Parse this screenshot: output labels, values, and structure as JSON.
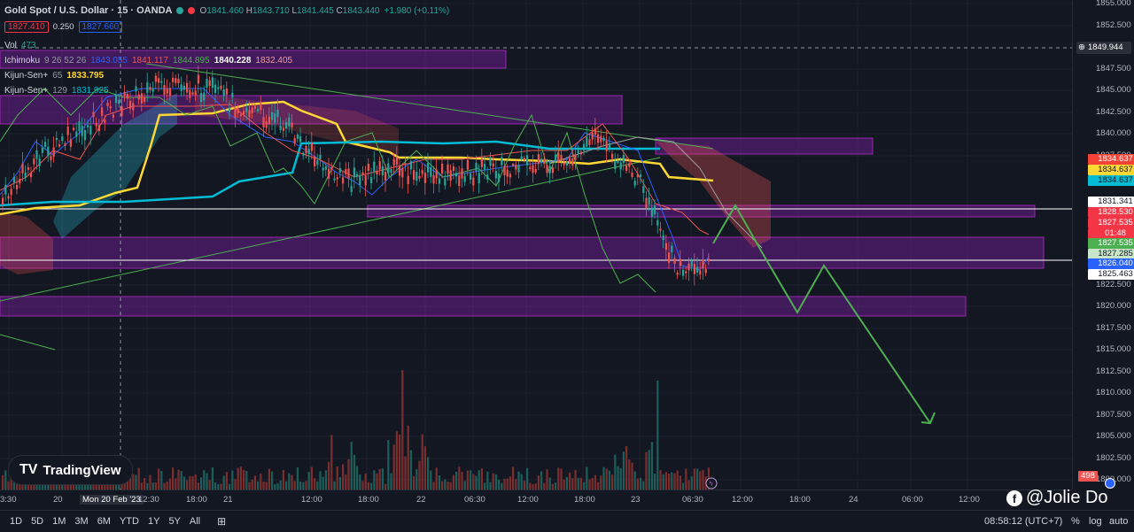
{
  "header": {
    "symbol": "Gold Spot / U.S. Dollar · 15 · OANDA",
    "ohlc": [
      {
        "k": "O",
        "v": "1841.460"
      },
      {
        "k": "H",
        "v": "1843.710"
      },
      {
        "k": "L",
        "v": "1841.445"
      },
      {
        "k": "C",
        "v": "1843.440"
      }
    ],
    "change": "+1.980 (+0.11%)",
    "sell_price": "1827.410",
    "spread": "0.250",
    "buy_price": "1827.660"
  },
  "indicators": {
    "vol": {
      "name": "Vol",
      "value": "473"
    },
    "ichimoku": {
      "name": "Ichimoku",
      "params": "9 26 52 26",
      "values": [
        "1843.055",
        "1841.117",
        "1844.895",
        "1840.228",
        "1832.405"
      ]
    },
    "kijun1": {
      "name": "Kijun-Sen+",
      "param": "65",
      "value": "1833.795"
    },
    "kijun2": {
      "name": "Kijun-Sen+",
      "param": "129",
      "value": "1831.925"
    }
  },
  "price_axis": {
    "ticks": [
      "1855.000",
      "1852.500",
      "1847.500",
      "1845.000",
      "1842.500",
      "1840.000",
      "1837.500",
      "1822.500",
      "1820.000",
      "1817.500",
      "1815.000",
      "1812.500",
      "1810.000",
      "1807.500",
      "1805.000",
      "1802.500",
      "1800.000"
    ],
    "crosshair_price": "1849.944",
    "tags": [
      {
        "label": "1834.637",
        "bg": "#f44336",
        "fg": "#ffffff"
      },
      {
        "label": "1834.637",
        "bg": "#fdd835",
        "fg": "#131722"
      },
      {
        "label": "1834.637",
        "bg": "#00bcd4",
        "fg": "#131722"
      },
      {
        "label": "1831.341",
        "bg": "#ffffff",
        "fg": "#131722"
      },
      {
        "label": "1828.530",
        "bg": "#f23645",
        "fg": "#ffffff"
      },
      {
        "label": "1827.535",
        "bg": "#f23645",
        "fg": "#ffffff"
      },
      {
        "label": "01:48",
        "bg": "#f23645",
        "fg": "#ffffff"
      },
      {
        "label": "1827.535",
        "bg": "#4caf50",
        "fg": "#ffffff"
      },
      {
        "label": "1827.285",
        "bg": "#c8e6c9",
        "fg": "#131722"
      },
      {
        "label": "1826.040",
        "bg": "#2962ff",
        "fg": "#ffffff"
      },
      {
        "label": "1825.463",
        "bg": "#ffffff",
        "fg": "#131722"
      }
    ],
    "volume_tag": {
      "label": "498",
      "bg": "#ef5350"
    }
  },
  "time_axis": {
    "ticks": [
      "3:30",
      "20",
      "Mon 20 Feb '23",
      "12:30",
      "18:00",
      "21",
      "12:00",
      "18:00",
      "22",
      "06:30",
      "12:00",
      "18:00",
      "23",
      "06:30",
      "12:00",
      "18:00",
      "24",
      "06:00",
      "12:00"
    ],
    "clock": "08:58:12 (UTC+7)"
  },
  "bottom_bar": {
    "timeframes": [
      "1D",
      "5D",
      "1M",
      "3M",
      "6M",
      "YTD",
      "1Y",
      "5Y",
      "All"
    ],
    "right": [
      "%",
      "log",
      "auto"
    ]
  },
  "branding": {
    "logo": "TradingView",
    "watermark": "@Jolie Do"
  },
  "colors": {
    "bg": "#131722",
    "up": "#26a69a",
    "down": "#ef5350",
    "zone": "#7b1fa2",
    "arrow": "#4caf50"
  }
}
